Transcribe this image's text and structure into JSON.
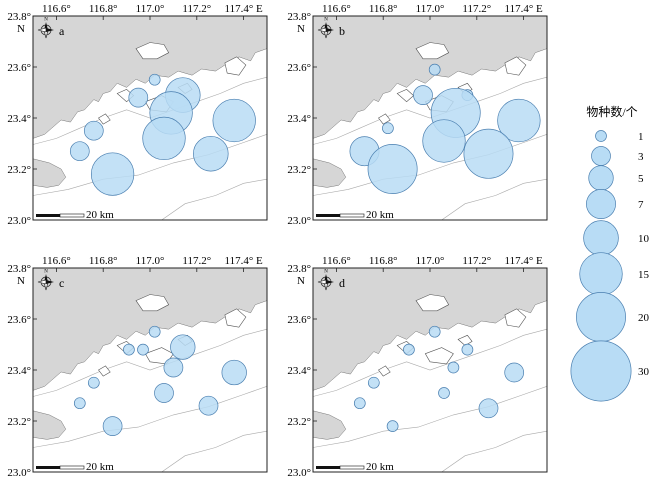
{
  "lon_labels": [
    "116.6°",
    "116.8°",
    "117.0°",
    "117.2°",
    "117.4° E"
  ],
  "lat_labels": [
    "23.8°",
    "23.6°",
    "23.4°",
    "23.2°",
    "23.0°"
  ],
  "north_label": "N",
  "compass_letter": "N",
  "scale_label": "20 km",
  "legend": {
    "title": "物种数/个",
    "items": [
      {
        "label": "1",
        "value": 1
      },
      {
        "label": "3",
        "value": 3
      },
      {
        "label": "5",
        "value": 5
      },
      {
        "label": "7",
        "value": 7
      },
      {
        "label": "10",
        "value": 10
      },
      {
        "label": "15",
        "value": 15
      },
      {
        "label": "20",
        "value": 20
      },
      {
        "label": "30",
        "value": 30
      }
    ]
  },
  "colors": {
    "bubble_fill": "#b8dcf5",
    "bubble_stroke": "#4a7fb0",
    "land": "#d6d6d6",
    "sea": "#ffffff",
    "contour": "#aaaaaa"
  },
  "panels": [
    {
      "id": "a",
      "label": "a",
      "stations": [
        {
          "lon": 117.02,
          "lat": 23.55,
          "species": 1
        },
        {
          "lon": 116.95,
          "lat": 23.48,
          "species": 3
        },
        {
          "lon": 117.14,
          "lat": 23.49,
          "species": 10
        },
        {
          "lon": 117.09,
          "lat": 23.42,
          "species": 15
        },
        {
          "lon": 117.36,
          "lat": 23.39,
          "species": 15
        },
        {
          "lon": 116.76,
          "lat": 23.35,
          "species": 3
        },
        {
          "lon": 117.06,
          "lat": 23.32,
          "species": 15
        },
        {
          "lon": 117.26,
          "lat": 23.26,
          "species": 10
        },
        {
          "lon": 116.7,
          "lat": 23.27,
          "species": 3
        },
        {
          "lon": 116.84,
          "lat": 23.18,
          "species": 15
        }
      ]
    },
    {
      "id": "b",
      "label": "b",
      "stations": [
        {
          "lon": 117.02,
          "lat": 23.59,
          "species": 1
        },
        {
          "lon": 116.97,
          "lat": 23.49,
          "species": 3
        },
        {
          "lon": 117.16,
          "lat": 23.49,
          "species": 1
        },
        {
          "lon": 117.11,
          "lat": 23.42,
          "species": 20
        },
        {
          "lon": 117.38,
          "lat": 23.39,
          "species": 15
        },
        {
          "lon": 116.82,
          "lat": 23.36,
          "species": 1
        },
        {
          "lon": 117.06,
          "lat": 23.31,
          "species": 15
        },
        {
          "lon": 117.25,
          "lat": 23.26,
          "species": 20
        },
        {
          "lon": 116.72,
          "lat": 23.27,
          "species": 7
        },
        {
          "lon": 116.84,
          "lat": 23.2,
          "species": 20
        }
      ]
    },
    {
      "id": "c",
      "label": "c",
      "stations": [
        {
          "lon": 117.02,
          "lat": 23.55,
          "species": 1
        },
        {
          "lon": 116.91,
          "lat": 23.48,
          "species": 1
        },
        {
          "lon": 116.97,
          "lat": 23.48,
          "species": 1
        },
        {
          "lon": 117.14,
          "lat": 23.49,
          "species": 5
        },
        {
          "lon": 117.1,
          "lat": 23.41,
          "species": 3
        },
        {
          "lon": 117.36,
          "lat": 23.39,
          "species": 5
        },
        {
          "lon": 116.76,
          "lat": 23.35,
          "species": 1
        },
        {
          "lon": 117.06,
          "lat": 23.31,
          "species": 3
        },
        {
          "lon": 117.25,
          "lat": 23.26,
          "species": 3
        },
        {
          "lon": 116.7,
          "lat": 23.27,
          "species": 1
        },
        {
          "lon": 116.84,
          "lat": 23.18,
          "species": 3
        }
      ]
    },
    {
      "id": "d",
      "label": "d",
      "stations": [
        {
          "lon": 117.02,
          "lat": 23.55,
          "species": 1
        },
        {
          "lon": 116.91,
          "lat": 23.48,
          "species": 1
        },
        {
          "lon": 117.16,
          "lat": 23.48,
          "species": 1
        },
        {
          "lon": 117.1,
          "lat": 23.41,
          "species": 1
        },
        {
          "lon": 117.36,
          "lat": 23.39,
          "species": 3
        },
        {
          "lon": 116.76,
          "lat": 23.35,
          "species": 1
        },
        {
          "lon": 117.06,
          "lat": 23.31,
          "species": 1
        },
        {
          "lon": 117.25,
          "lat": 23.25,
          "species": 3
        },
        {
          "lon": 116.7,
          "lat": 23.27,
          "species": 1
        },
        {
          "lon": 116.84,
          "lat": 23.18,
          "species": 1
        }
      ]
    }
  ]
}
